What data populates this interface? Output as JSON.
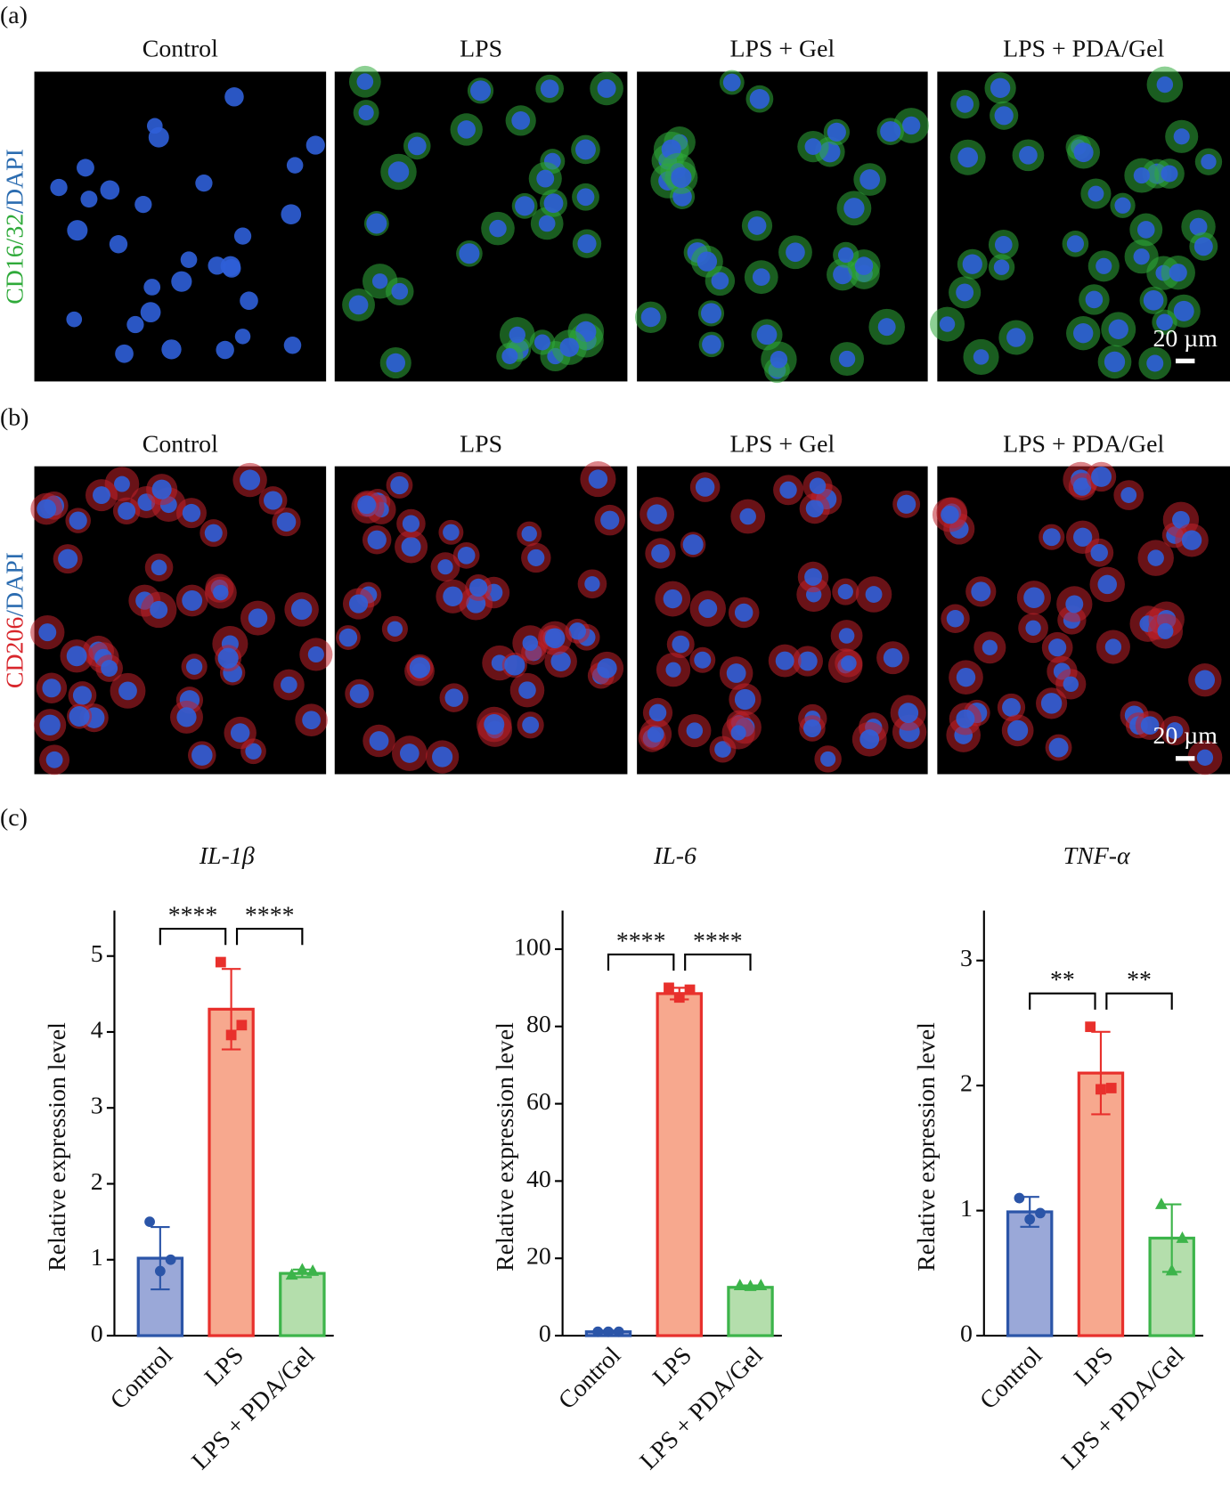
{
  "panel_a": {
    "label": "(a)",
    "columns": [
      "Control",
      "LPS",
      "LPS + Gel",
      "LPS + PDA/Gel"
    ],
    "y_label_parts": [
      "CD16/32",
      "/DAPI"
    ],
    "scale_bar": "20 µm"
  },
  "panel_b": {
    "label": "(b)",
    "columns": [
      "Control",
      "LPS",
      "LPS + Gel",
      "LPS + PDA/Gel"
    ],
    "y_label_parts": [
      "CD206",
      "/DAPI"
    ],
    "scale_bar": "20 µm"
  },
  "panel_c": {
    "label": "(c)"
  },
  "chart_data": [
    {
      "type": "bar",
      "title": "IL-1β",
      "y_label": "Relative expression level",
      "categories": [
        "Control",
        "LPS",
        "LPS + PDA/Gel"
      ],
      "values": [
        1.02,
        4.3,
        0.82
      ],
      "errors": [
        0.41,
        0.53,
        0.05
      ],
      "points": [
        [
          1.5,
          0.85,
          1.0
        ],
        [
          4.92,
          3.96,
          4.09
        ],
        [
          0.8,
          0.87,
          0.85
        ]
      ],
      "colors": [
        "#2b55a8",
        "#e8302c",
        "#3cb44a"
      ],
      "fill_colors": [
        "#9aa8d8",
        "#f7a88e",
        "#b4deac"
      ],
      "markers": [
        "circle",
        "square",
        "triangle"
      ],
      "ylim": [
        0,
        5.6
      ],
      "yticks": [
        0,
        1,
        2,
        3,
        4,
        5
      ],
      "significance": [
        {
          "from": 0,
          "to": 1,
          "label": "****"
        },
        {
          "from": 1,
          "to": 2,
          "label": "****"
        }
      ]
    },
    {
      "type": "bar",
      "title": "IL-6",
      "y_label": "Relative expression level",
      "categories": [
        "Control",
        "LPS",
        "LPS + PDA/Gel"
      ],
      "values": [
        1,
        88.5,
        12.5
      ],
      "errors": [
        0.3,
        1.5,
        0.5
      ],
      "points": [
        [
          1,
          1,
          1
        ],
        [
          90,
          87.5,
          89.5
        ],
        [
          13,
          12.8,
          13
        ]
      ],
      "colors": [
        "#2b55a8",
        "#e8302c",
        "#3cb44a"
      ],
      "fill_colors": [
        "#9aa8d8",
        "#f7a88e",
        "#b4deac"
      ],
      "markers": [
        "circle",
        "square",
        "triangle"
      ],
      "ylim": [
        0,
        110
      ],
      "yticks": [
        0,
        20,
        40,
        60,
        80,
        100
      ],
      "significance": [
        {
          "from": 0,
          "to": 1,
          "label": "****"
        },
        {
          "from": 1,
          "to": 2,
          "label": "****"
        }
      ]
    },
    {
      "type": "bar",
      "title": "TNF-α",
      "y_label": "Relative expression level",
      "categories": [
        "Control",
        "LPS",
        "LPS + PDA/Gel"
      ],
      "values": [
        0.99,
        2.1,
        0.78
      ],
      "errors": [
        0.12,
        0.33,
        0.27
      ],
      "points": [
        [
          1.1,
          0.93,
          0.98
        ],
        [
          2.47,
          1.97,
          1.98
        ],
        [
          1.05,
          0.52,
          0.78
        ]
      ],
      "colors": [
        "#2b55a8",
        "#e8302c",
        "#3cb44a"
      ],
      "fill_colors": [
        "#9aa8d8",
        "#f7a88e",
        "#b4deac"
      ],
      "markers": [
        "circle",
        "square",
        "triangle"
      ],
      "ylim": [
        0,
        3.4
      ],
      "yticks": [
        0,
        1,
        2,
        3
      ],
      "significance": [
        {
          "from": 0,
          "to": 1,
          "label": "**"
        },
        {
          "from": 1,
          "to": 2,
          "label": "**"
        }
      ]
    }
  ]
}
